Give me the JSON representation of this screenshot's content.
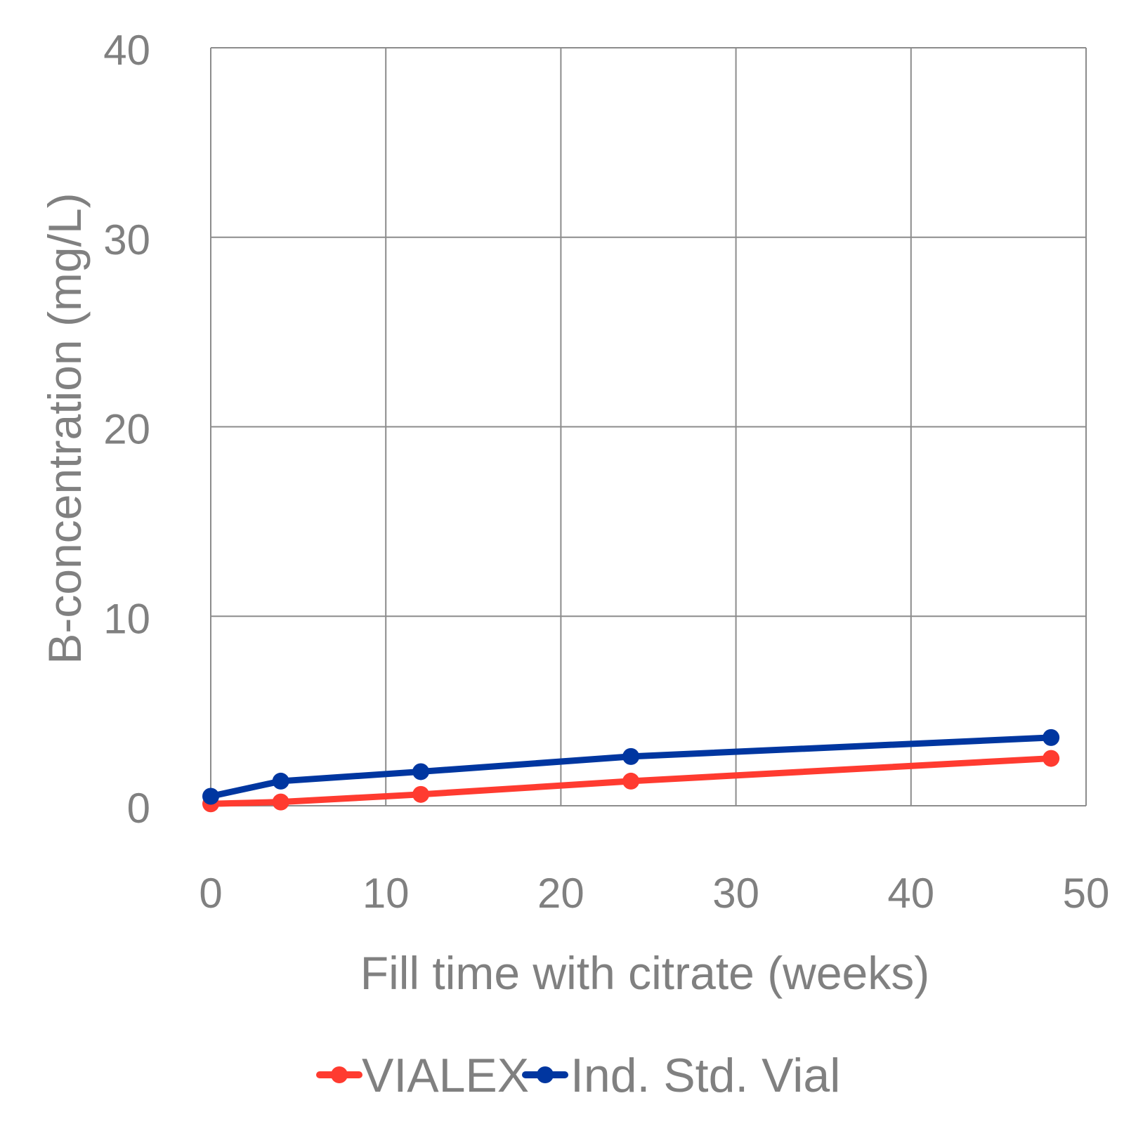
{
  "chart_data": {
    "type": "line",
    "title": "",
    "xlabel": "Fill time with citrate (weeks)",
    "ylabel": "B-concentration (mg/L)",
    "xlim": [
      0,
      50
    ],
    "ylim": [
      0,
      40
    ],
    "xticks": [
      0,
      10,
      20,
      30,
      40,
      50
    ],
    "yticks": [
      0,
      10,
      20,
      30,
      40
    ],
    "x_tick_labels": [
      "0",
      "10",
      "20",
      "30",
      "40",
      "50"
    ],
    "y_tick_labels": [
      "0",
      "10",
      "20",
      "30",
      "40"
    ],
    "grid": true,
    "legend_position": "bottom",
    "series": [
      {
        "name": "VIALEX",
        "color": "#ff3b30",
        "x": [
          0,
          4,
          12,
          24,
          48
        ],
        "y": [
          0.1,
          0.2,
          0.6,
          1.3,
          2.5
        ]
      },
      {
        "name": "Ind. Std. Vial",
        "color": "#0036a0",
        "x": [
          0,
          4,
          12,
          24,
          48
        ],
        "y": [
          0.5,
          1.3,
          1.8,
          2.6,
          3.6
        ]
      }
    ]
  }
}
